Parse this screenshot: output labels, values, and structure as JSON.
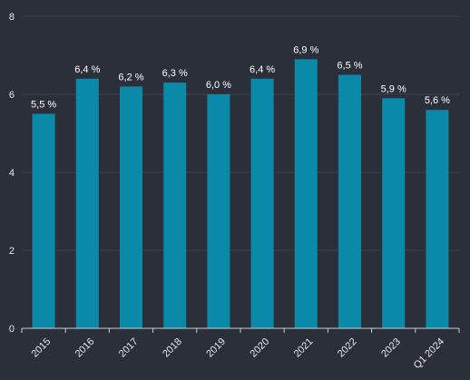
{
  "colors": {
    "background": "#2b2f3a",
    "bar": "#0a8aa8",
    "grid": "#3b404b",
    "axis": "#c9ccd2",
    "text": "#ffffff",
    "tick_text": "#e8e8e8"
  },
  "chart_data": {
    "type": "bar",
    "title": "",
    "xlabel": "",
    "ylabel": "",
    "categories": [
      "2015",
      "2016",
      "2017",
      "2018",
      "2019",
      "2020",
      "2021",
      "2022",
      "2023",
      "Q1 2024"
    ],
    "values": [
      5.5,
      6.4,
      6.2,
      6.3,
      6.0,
      6.4,
      6.9,
      6.5,
      5.9,
      5.6
    ],
    "data_labels": [
      "5,5 %",
      "6,4 %",
      "6,2 %",
      "6,3 %",
      "6,0 %",
      "6,4 %",
      "6,9 %",
      "6,5 %",
      "5,9 %",
      "5,6 %"
    ],
    "y_ticks": [
      0,
      2,
      4,
      6,
      8
    ],
    "y_tick_labels": [
      "0",
      "2",
      "4",
      "6",
      "8"
    ],
    "ylim": [
      0,
      8
    ],
    "grid": true,
    "legend": "none"
  }
}
